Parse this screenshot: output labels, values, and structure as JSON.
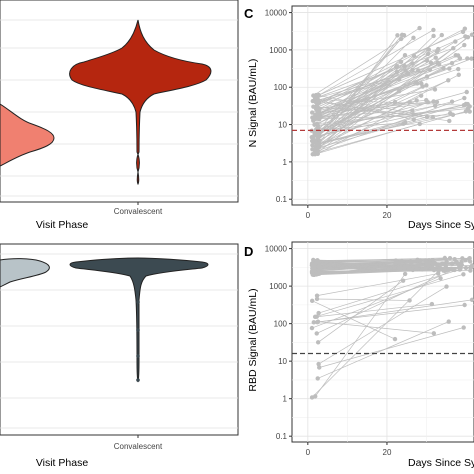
{
  "colors": {
    "panel_border": "#333333",
    "grid": "#e3e3e3",
    "violin_acute_top": "#f08070",
    "violin_convalescent_top": "#b5260f",
    "violin_acute_bottom": "#b8c3c8",
    "violin_convalescent_bottom": "#3c4a51",
    "points": "#bdbdbd",
    "threshold_c": "#b33a3a",
    "threshold_d": "#444444"
  },
  "chart_data": [
    {
      "panel": "top-left",
      "type": "violin",
      "xlabel": "Visit Phase",
      "categories": [
        "Convalescent"
      ],
      "visible_violins": [
        "Acute (partially visible)",
        "Convalescent"
      ],
      "grid": true
    },
    {
      "panel": "bottom-left",
      "type": "violin",
      "xlabel": "Visit Phase",
      "categories": [
        "Convalescent"
      ],
      "visible_violins": [
        "Acute (partially visible)",
        "Convalescent"
      ],
      "grid": true
    },
    {
      "panel": "C",
      "type": "scatter",
      "ylabel": "N Signal (BAU/mL)",
      "xlabel": "Days Since Symp",
      "x_ticks": [
        "0",
        "20"
      ],
      "y_ticks": [
        "10000",
        "1000",
        "100",
        "10",
        "1",
        "0.1"
      ],
      "y_scale": "log",
      "ylim": [
        0.07,
        15000
      ],
      "xlim": [
        -4,
        42
      ],
      "threshold": 7,
      "threshold_style": "dashed red",
      "grid": true
    },
    {
      "panel": "D",
      "type": "scatter",
      "ylabel": "RBD Signal (BAU/mL)",
      "xlabel": "Days Since Symp",
      "x_ticks": [
        "0",
        "20"
      ],
      "y_ticks": [
        "10000",
        "1000",
        "100",
        "10",
        "1",
        "0.1"
      ],
      "y_scale": "log",
      "ylim": [
        0.07,
        15000
      ],
      "xlim": [
        -4,
        42
      ],
      "threshold": 16,
      "threshold_style": "dashed dark gray",
      "grid": true
    }
  ]
}
